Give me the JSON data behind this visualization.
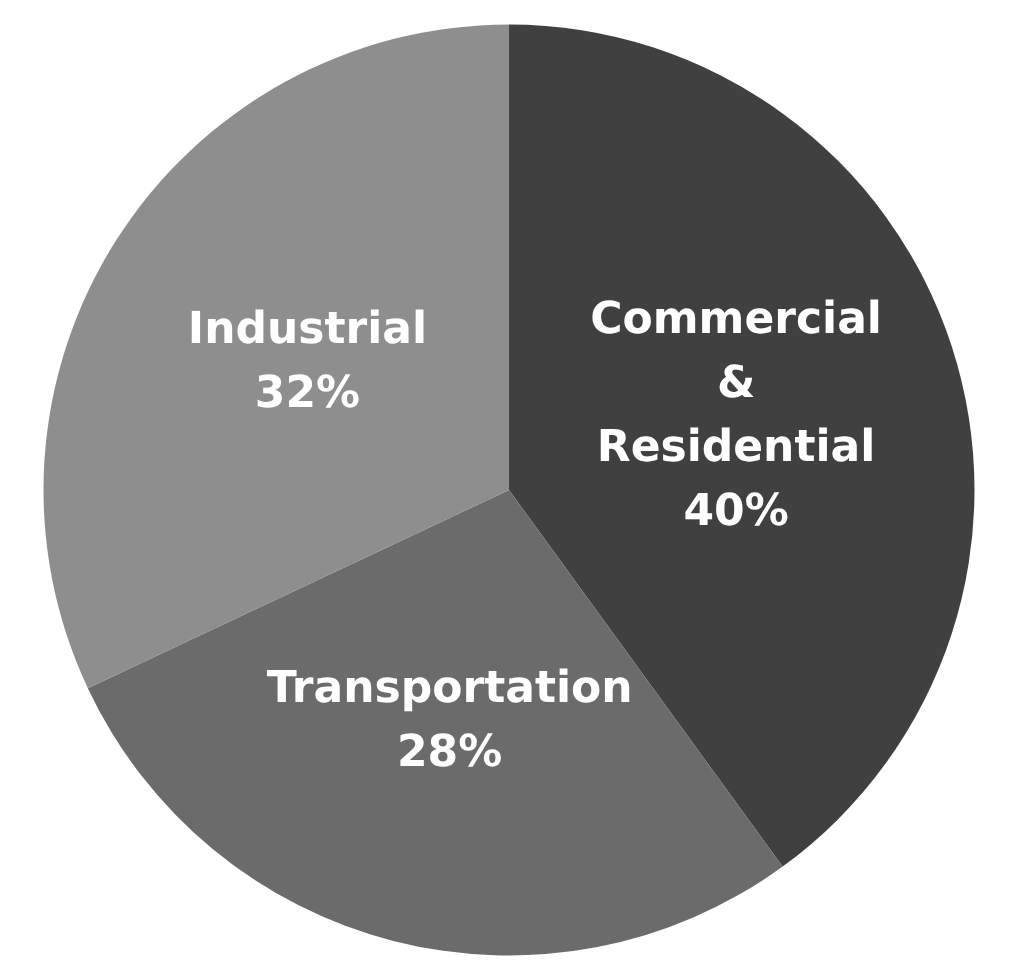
{
  "chart_data": {
    "type": "pie",
    "categories": [
      "Commercial & Residential",
      "Transportation",
      "Industrial"
    ],
    "values": [
      40,
      28,
      32
    ],
    "colors": [
      "#404040",
      "#6b6b6b",
      "#8e8e8e"
    ],
    "value_labels": [
      "40%",
      "28%",
      "32%"
    ],
    "legend": false
  }
}
